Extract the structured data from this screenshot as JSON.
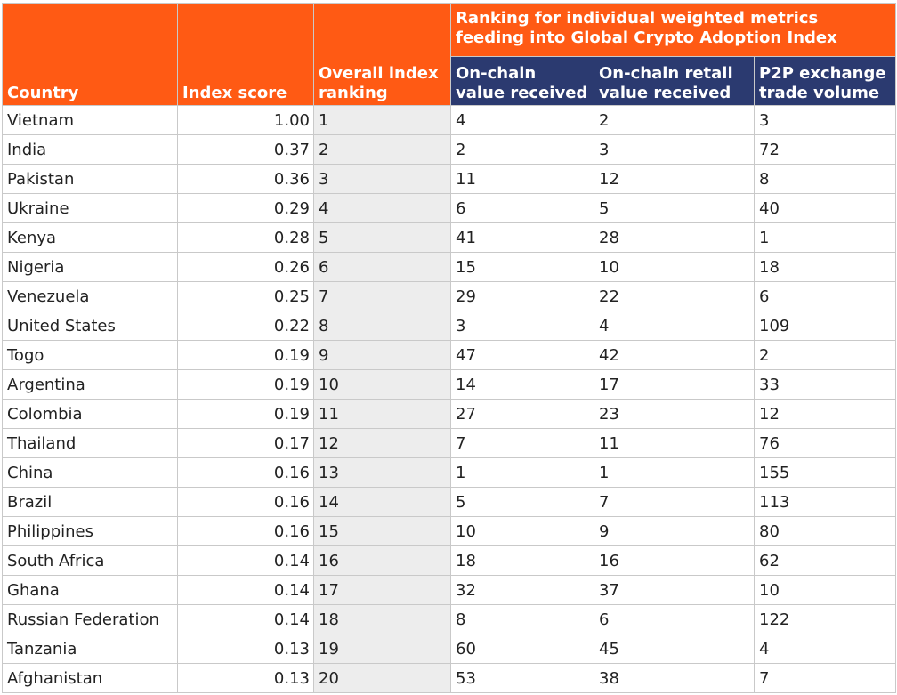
{
  "table": {
    "headers": {
      "country": "Country",
      "index_score": "Index score",
      "overall_ranking": "Overall index ranking",
      "group": "Ranking for individual weighted metrics feeding into Global Crypto Adoption Index",
      "onchain_value": "On-chain value received",
      "onchain_retail": "On-chain retail value received",
      "p2p_volume": "P2P exchange trade volume"
    },
    "rows": [
      {
        "country": "Vietnam",
        "score": "1.00",
        "rank": "1",
        "onchain": "4",
        "retail": "2",
        "p2p": "3"
      },
      {
        "country": "India",
        "score": "0.37",
        "rank": "2",
        "onchain": "2",
        "retail": "3",
        "p2p": "72"
      },
      {
        "country": "Pakistan",
        "score": "0.36",
        "rank": "3",
        "onchain": "11",
        "retail": "12",
        "p2p": "8"
      },
      {
        "country": "Ukraine",
        "score": "0.29",
        "rank": "4",
        "onchain": "6",
        "retail": "5",
        "p2p": "40"
      },
      {
        "country": "Kenya",
        "score": "0.28",
        "rank": "5",
        "onchain": "41",
        "retail": "28",
        "p2p": "1"
      },
      {
        "country": "Nigeria",
        "score": "0.26",
        "rank": "6",
        "onchain": "15",
        "retail": "10",
        "p2p": "18"
      },
      {
        "country": "Venezuela",
        "score": "0.25",
        "rank": "7",
        "onchain": "29",
        "retail": "22",
        "p2p": "6"
      },
      {
        "country": "United States",
        "score": "0.22",
        "rank": "8",
        "onchain": "3",
        "retail": "4",
        "p2p": "109"
      },
      {
        "country": "Togo",
        "score": "0.19",
        "rank": "9",
        "onchain": "47",
        "retail": "42",
        "p2p": "2"
      },
      {
        "country": "Argentina",
        "score": "0.19",
        "rank": "10",
        "onchain": "14",
        "retail": "17",
        "p2p": "33"
      },
      {
        "country": "Colombia",
        "score": "0.19",
        "rank": "11",
        "onchain": "27",
        "retail": "23",
        "p2p": "12"
      },
      {
        "country": "Thailand",
        "score": "0.17",
        "rank": "12",
        "onchain": "7",
        "retail": "11",
        "p2p": "76"
      },
      {
        "country": "China",
        "score": "0.16",
        "rank": "13",
        "onchain": "1",
        "retail": "1",
        "p2p": "155"
      },
      {
        "country": "Brazil",
        "score": "0.16",
        "rank": "14",
        "onchain": "5",
        "retail": "7",
        "p2p": "113"
      },
      {
        "country": "Philippines",
        "score": "0.16",
        "rank": "15",
        "onchain": "10",
        "retail": "9",
        "p2p": "80"
      },
      {
        "country": "South Africa",
        "score": "0.14",
        "rank": "16",
        "onchain": "18",
        "retail": "16",
        "p2p": "62"
      },
      {
        "country": "Ghana",
        "score": "0.14",
        "rank": "17",
        "onchain": "32",
        "retail": "37",
        "p2p": "10"
      },
      {
        "country": "Russian Federation",
        "score": "0.14",
        "rank": "18",
        "onchain": "8",
        "retail": "6",
        "p2p": "122"
      },
      {
        "country": "Tanzania",
        "score": "0.13",
        "rank": "19",
        "onchain": "60",
        "retail": "45",
        "p2p": "4"
      },
      {
        "country": "Afghanistan",
        "score": "0.13",
        "rank": "20",
        "onchain": "53",
        "retail": "38",
        "p2p": "7"
      }
    ]
  },
  "colors": {
    "header_orange": "#ff5a14",
    "header_navy": "#2b3a70",
    "rank_shading": "#ededed"
  }
}
